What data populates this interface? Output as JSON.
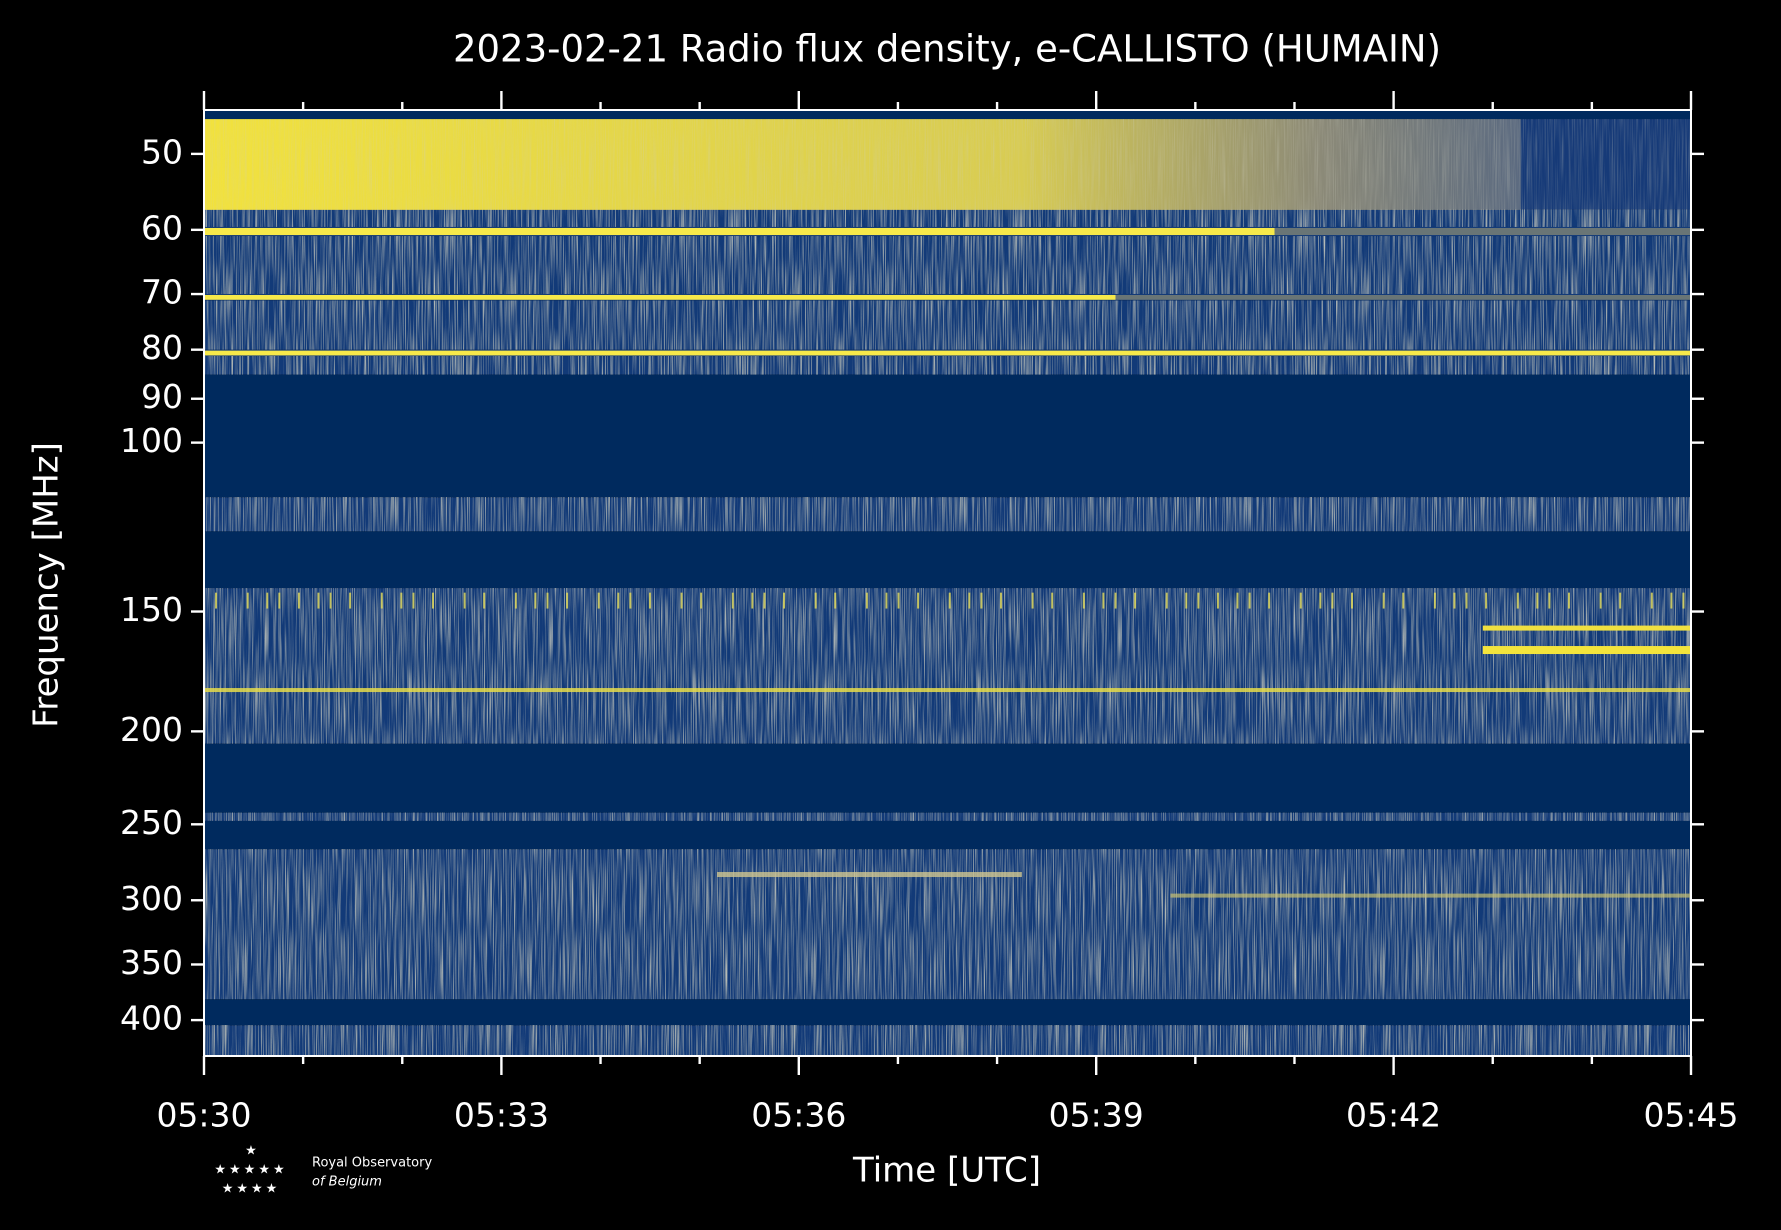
{
  "chart_data": {
    "type": "spectrogram",
    "title": "2023-02-21 Radio flux density, e-CALLISTO (HUMAIN)",
    "x_label": "Time [UTC]",
    "y_label": "Frequency [MHz]",
    "xlim": [
      "05:30",
      "05:45"
    ],
    "xticks": [
      "05:30",
      "05:33",
      "05:36",
      "05:39",
      "05:42",
      "05:45"
    ],
    "ylim": [
      45,
      436
    ],
    "y_log": true,
    "y_inverted": true,
    "yticks": [
      50,
      60,
      70,
      80,
      90,
      100,
      150,
      200,
      250,
      300,
      350,
      400
    ],
    "logo": [
      "Royal Observatory",
      "of Belgium"
    ]
  }
}
